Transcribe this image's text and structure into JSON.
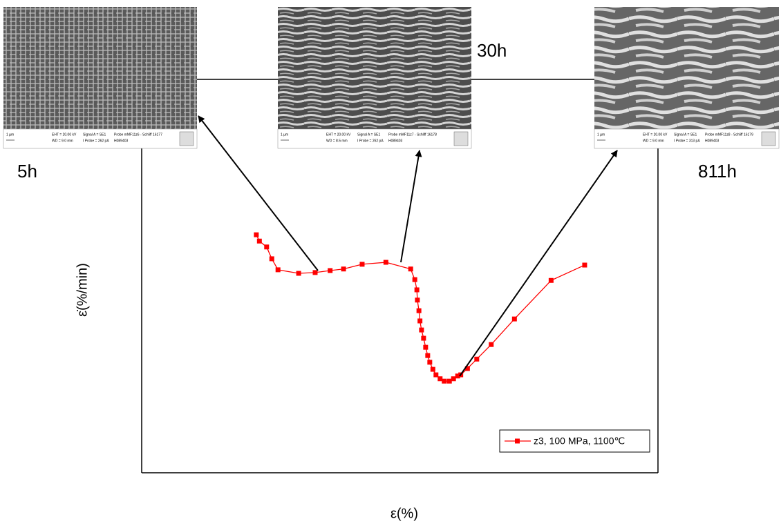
{
  "chart_data": {
    "type": "line",
    "xlabel": "ε(%)",
    "ylabel": "ε̇(%/min)",
    "xlim": [
      0,
      100
    ],
    "ylim": [
      0,
      100
    ],
    "x": [
      22.2,
      22.8,
      24.2,
      25.2,
      26.4,
      30.4,
      33.6,
      36.5,
      39.1,
      42.7,
      47.3,
      52.1,
      52.9,
      53.3,
      53.4,
      53.7,
      53.9,
      54.2,
      54.6,
      55.0,
      55.4,
      55.8,
      56.4,
      57.0,
      57.8,
      58.6,
      59.6,
      60.4,
      61.2,
      61.8,
      63.1,
      64.9,
      67.7,
      72.2,
      79.3,
      85.8
    ],
    "series": [
      {
        "name": "z3, 100 MPa, 1100℃",
        "color": "#ff0000",
        "values": [
          60.5,
          58.9,
          57.4,
          54.4,
          51.6,
          50.7,
          50.9,
          51.4,
          51.8,
          53.0,
          53.5,
          51.8,
          49.1,
          46.5,
          43.9,
          41.2,
          38.6,
          36.3,
          34.2,
          31.9,
          29.8,
          28.1,
          26.3,
          24.9,
          23.9,
          23.3,
          23.3,
          23.9,
          24.6,
          24.9,
          26.5,
          28.9,
          32.6,
          39.1,
          48.9,
          52.8
        ]
      }
    ],
    "legend": "lower right",
    "micrographs": [
      {
        "label": "5h",
        "scale": "1 µm",
        "info": [
          "EHT = 20.00 kV",
          "Signal A = SE1",
          "Probe mMF11z6 - Schliff 16177",
          "WD = 9.0 mm",
          "I Probe = 262 pA",
          "H089403"
        ]
      },
      {
        "label": "30h",
        "scale": "1 µm",
        "info": [
          "EHT = 20.00 kV",
          "Signal A = SE1",
          "Probe mMF11z7 - Schliff 16178",
          "WD = 8.5 mm",
          "I Probe = 262 pA",
          "H089403"
        ]
      },
      {
        "label": "811h",
        "scale": "1 µm",
        "info": [
          "EHT = 20.00 kV",
          "Signal A = SE1",
          "Probe mMF11z8 - Schliff 16179",
          "WD = 9.0 mm",
          "I Probe = 313 pA",
          "H089403"
        ]
      }
    ]
  }
}
